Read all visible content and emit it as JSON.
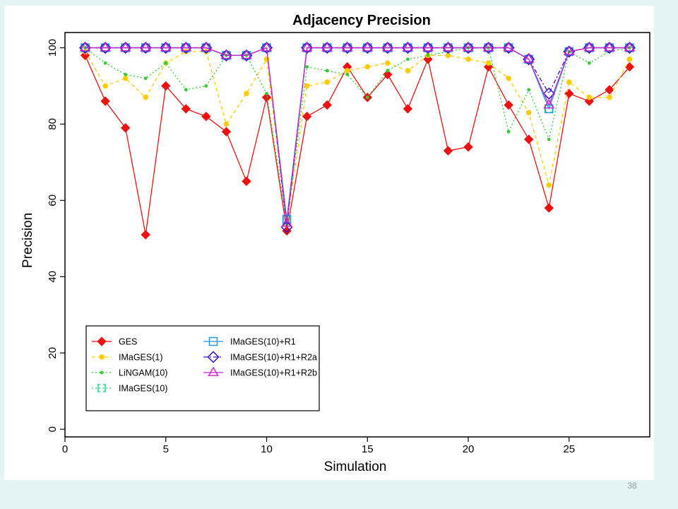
{
  "slide": {
    "number": "38"
  },
  "chart_data": {
    "type": "line",
    "title": "Adjacency Precision",
    "xlabel": "Simulation",
    "ylabel": "Precision",
    "xlim": [
      0,
      29
    ],
    "ylim": [
      -2,
      104
    ],
    "x_ticks": [
      0,
      5,
      10,
      15,
      20,
      25
    ],
    "y_ticks": [
      0,
      20,
      40,
      60,
      80,
      100
    ],
    "grid": false,
    "legend_position": "bottom-left",
    "x": [
      1,
      2,
      3,
      4,
      5,
      6,
      7,
      8,
      9,
      10,
      11,
      12,
      13,
      14,
      15,
      16,
      17,
      18,
      19,
      20,
      21,
      22,
      23,
      24,
      25,
      26,
      27,
      28
    ],
    "series": [
      {
        "name": "GES",
        "color": "#ee1111",
        "marker": "diamond-filled",
        "dash": "",
        "values": [
          98,
          86,
          79,
          51,
          90,
          84,
          82,
          78,
          65,
          87,
          52,
          82,
          85,
          95,
          87,
          93,
          84,
          97,
          73,
          74,
          95,
          85,
          76,
          58,
          88,
          86,
          89,
          95
        ]
      },
      {
        "name": "IMaGES(1)",
        "color": "#ffcc00",
        "marker": "circle-filled",
        "dash": "5,4",
        "values": [
          99,
          90,
          92,
          87,
          96,
          99,
          99,
          80,
          88,
          97,
          54,
          90,
          91,
          94,
          95,
          96,
          94,
          98,
          98,
          97,
          96,
          92,
          83,
          64,
          91,
          87,
          87,
          97
        ]
      },
      {
        "name": "LiNGAM(10)",
        "color": "#33cc33",
        "marker": "dot",
        "dash": "2,3",
        "values": [
          100,
          96,
          93,
          92,
          96,
          89,
          90,
          98,
          98,
          88,
          54,
          95,
          94,
          93,
          87,
          94,
          97,
          98,
          99,
          100,
          100,
          78,
          89,
          76,
          99,
          96,
          99,
          100
        ]
      },
      {
        "name": "IMaGES(10)",
        "color": "#22dd88",
        "marker": "bracket",
        "dash": "2,3",
        "values": [
          100,
          100,
          100,
          100,
          100,
          100,
          100,
          98,
          98,
          100,
          55,
          100,
          100,
          100,
          100,
          100,
          100,
          100,
          100,
          100,
          100,
          100,
          97,
          84,
          99,
          100,
          100,
          100
        ]
      },
      {
        "name": "IMaGES(10)+R1",
        "color": "#2299dd",
        "marker": "square-open",
        "dash": "",
        "values": [
          100,
          100,
          100,
          100,
          100,
          100,
          100,
          98,
          98,
          100,
          55,
          100,
          100,
          100,
          100,
          100,
          100,
          100,
          100,
          100,
          100,
          100,
          97,
          84,
          99,
          100,
          100,
          100
        ]
      },
      {
        "name": "IMaGES(10)+R1+R2a",
        "color": "#3311cc",
        "marker": "diamond-open",
        "dash": "6,3,2,3",
        "values": [
          100,
          100,
          100,
          100,
          100,
          100,
          100,
          98,
          98,
          100,
          53,
          100,
          100,
          100,
          100,
          100,
          100,
          100,
          100,
          100,
          100,
          100,
          97,
          88,
          99,
          100,
          100,
          100
        ]
      },
      {
        "name": "IMaGES(10)+R1+R2b",
        "color": "#cc22cc",
        "marker": "triangle-open",
        "dash": "",
        "values": [
          100,
          100,
          100,
          100,
          100,
          100,
          100,
          98,
          98,
          100,
          54,
          100,
          100,
          100,
          100,
          100,
          100,
          100,
          100,
          100,
          100,
          100,
          97,
          85,
          99,
          100,
          100,
          100
        ]
      }
    ]
  }
}
